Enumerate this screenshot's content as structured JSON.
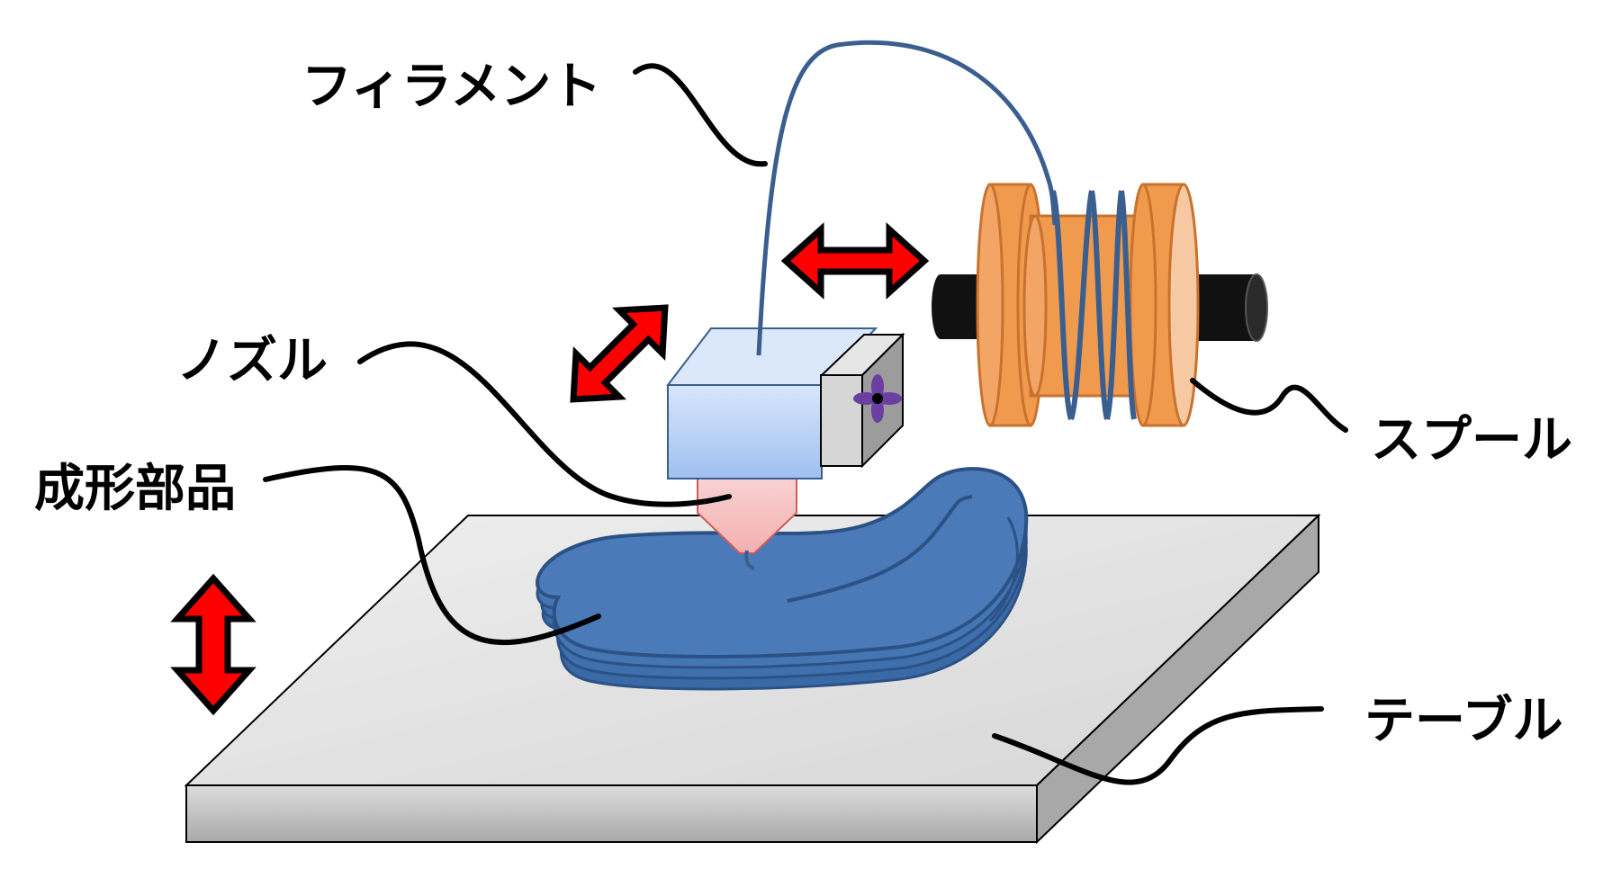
{
  "labels": {
    "filament": "フィラメント",
    "nozzle": "ノズル",
    "part": "成形部品",
    "spool": "スプール",
    "table": "テーブル"
  },
  "colors": {
    "filament": "#3a5f8f",
    "part": "#4a7ab8",
    "spool": "#f09a4e",
    "spool_edge": "#c9722e",
    "head": "#bcd4f5",
    "nozzle_tip": "#f7c5c5",
    "arrow": "#ff0000",
    "table_top": "#e3e3e3",
    "table_side": "#bdbdbd",
    "fan": "#6b3fa0"
  },
  "icons": [
    "double-arrow-icon",
    "fan-icon"
  ]
}
